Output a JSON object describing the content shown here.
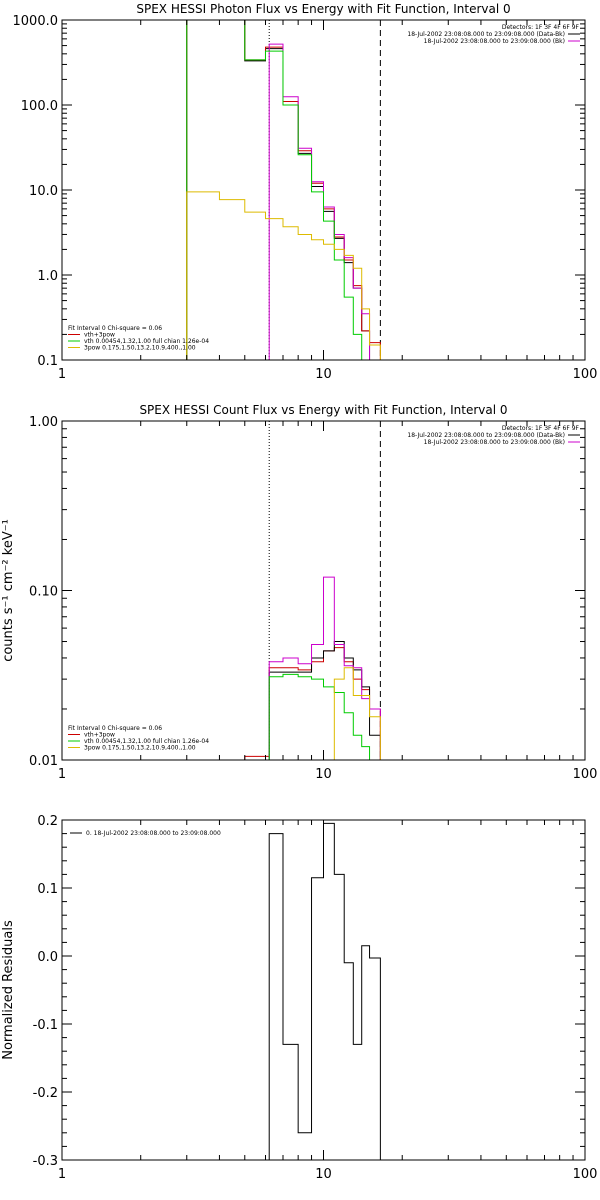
{
  "chart_data": [
    {
      "type": "line",
      "title": "SPEX HESSI Photon Flux vs Energy with Fit Function, Interval 0",
      "xscale": "log",
      "yscale": "log",
      "xlim": [
        1,
        100
      ],
      "ylim": [
        0.1,
        1000
      ],
      "xticks": [
        {
          "v": 1,
          "label": "1"
        },
        {
          "v": 10,
          "label": "10"
        },
        {
          "v": 100,
          "label": "100"
        }
      ],
      "yticks": [
        {
          "v": 0.1,
          "label": "0.1"
        },
        {
          "v": 1,
          "label": "1.0"
        },
        {
          "v": 10,
          "label": "10.0"
        },
        {
          "v": 100,
          "label": "100.0"
        },
        {
          "v": 1000,
          "label": "1000.0"
        }
      ],
      "vlines": [
        {
          "x": 6.2,
          "style": "dotted"
        },
        {
          "x": 16.5,
          "style": "dashed"
        }
      ],
      "legend_topright": [
        "Detectors: 1F 3F 4F 6F 9F",
        "18-Jul-2002 23:08:08.000 to 23:09:08.000 (Data-Bk)",
        "18-Jul-2002 23:08:08.000 to 23:09:08.000 (Bk)"
      ],
      "legend_topright_colors": [
        "",
        "#000000",
        "#cc00cc"
      ],
      "legend_bottomleft": [
        "Fit Interval 0   Chi-square = 0.06",
        "vth+3pow",
        "vth 0.00454,1.32,1.00  full chian 1.26e-04",
        "3pow 0.175,1.50,13.2,10.9,400.,1.00"
      ],
      "legend_bottomleft_colors": [
        "",
        "#cc0000",
        "#00cc00",
        "#ddbb00"
      ],
      "series": [
        {
          "color": "#000000",
          "edges": [
            3.0,
            4.0,
            5.0,
            6.0,
            7.0,
            8.0,
            9.0,
            10.0,
            11.0,
            12.0,
            13.0,
            14.0,
            15.0,
            16.5
          ],
          "values": [
            1000,
            1000,
            330,
            460,
            100,
            27,
            11,
            5.6,
            2.7,
            1.4,
            0.7,
            0.22,
            0.08
          ]
        },
        {
          "color": "#cc0000",
          "edges": [
            3.0,
            4.0,
            5.0,
            6.0,
            7.0,
            8.0,
            9.0,
            10.0,
            11.0,
            12.0,
            13.0,
            14.0,
            15.0,
            16.5
          ],
          "values": [
            1000,
            1000,
            340,
            480,
            110,
            29,
            12,
            6.0,
            2.8,
            1.5,
            0.75,
            0.22,
            0.16
          ]
        },
        {
          "color": "#cc00cc",
          "edges": [
            6.2,
            7.0,
            8.0,
            9.0,
            10.0,
            11.0,
            12.0,
            13.0,
            14.0,
            15.0,
            16.5
          ],
          "values": [
            520,
            125,
            31,
            12.5,
            6.3,
            3.0,
            1.6,
            0.7,
            0.35,
            0.05
          ]
        },
        {
          "color": "#00cc00",
          "edges": [
            3.0,
            4.0,
            5.0,
            6.0,
            7.0,
            8.0,
            9.0,
            10.0,
            11.0,
            12.0,
            13.0,
            14.0,
            15.0
          ],
          "values": [
            1000,
            1000,
            340,
            430,
            100,
            26,
            9.5,
            4.3,
            1.5,
            0.55,
            0.2,
            0.05
          ]
        },
        {
          "color": "#ddbb00",
          "edges": [
            3.0,
            4.0,
            5.0,
            6.0,
            7.0,
            8.0,
            9.0,
            10.0,
            11.0,
            12.0,
            13.0,
            14.0,
            15.0,
            16.5
          ],
          "values": [
            9.5,
            7.7,
            5.5,
            4.6,
            3.7,
            3.0,
            2.6,
            2.3,
            2.0,
            1.7,
            1.2,
            0.4,
            0.15
          ]
        }
      ]
    },
    {
      "type": "line",
      "title": "SPEX HESSI Count Flux vs Energy with Fit Function, Interval 0",
      "ylabel": "counts s⁻¹ cm⁻² keV⁻¹",
      "xscale": "log",
      "yscale": "log",
      "xlim": [
        1,
        100
      ],
      "ylim": [
        0.01,
        1.0
      ],
      "xticks": [
        {
          "v": 1,
          "label": "1"
        },
        {
          "v": 10,
          "label": "10"
        },
        {
          "v": 100,
          "label": "100"
        }
      ],
      "yticks": [
        {
          "v": 0.01,
          "label": "0.01"
        },
        {
          "v": 0.1,
          "label": "0.10"
        },
        {
          "v": 1,
          "label": "1.00"
        }
      ],
      "vlines": [
        {
          "x": 6.2,
          "style": "dotted"
        },
        {
          "x": 16.5,
          "style": "dashed"
        }
      ],
      "legend_topright": [
        "Detectors: 1F 3F 4F 6F 9F",
        "18-Jul-2002 23:08:08.000 to 23:09:08.000 (Data-Bk)",
        "18-Jul-2002 23:08:08.000 to 23:09:08.000 (Bk)"
      ],
      "legend_topright_colors": [
        "",
        "#000000",
        "#cc00cc"
      ],
      "legend_bottomleft": [
        "Fit Interval 0   Chi-square = 0.06",
        "vth+3pow",
        "vth 0.00454,1.32,1.00  full chian 1.26e-04",
        "3pow 0.175,1.50,13.2,10.9,400.,1.00"
      ],
      "legend_bottomleft_colors": [
        "",
        "#cc0000",
        "#00cc00",
        "#ddbb00"
      ],
      "series": [
        {
          "color": "#cc0000",
          "edges": [
            5.0,
            6.2,
            7.0,
            8.0,
            9.0,
            10.0,
            11.0,
            12.0,
            13.0,
            14.0,
            15.0,
            16.5
          ],
          "values": [
            0.0105,
            0.035,
            0.035,
            0.034,
            0.038,
            0.044,
            0.046,
            0.038,
            0.03,
            0.026,
            0.02
          ]
        },
        {
          "color": "#000000",
          "edges": [
            6.2,
            7.0,
            8.0,
            9.0,
            10.0,
            11.0,
            12.0,
            13.0,
            14.0,
            15.0,
            16.5
          ],
          "values": [
            0.033,
            0.033,
            0.033,
            0.04,
            0.044,
            0.05,
            0.04,
            0.034,
            0.027,
            0.014
          ]
        },
        {
          "color": "#cc00cc",
          "edges": [
            6.2,
            7.0,
            8.0,
            9.0,
            10.0,
            11.0,
            12.0,
            13.0,
            14.0,
            15.0,
            16.5
          ],
          "values": [
            0.038,
            0.04,
            0.037,
            0.048,
            0.12,
            0.048,
            0.036,
            0.035,
            0.023,
            0.02
          ]
        },
        {
          "color": "#00cc00",
          "edges": [
            6.2,
            7.0,
            8.0,
            9.0,
            10.0,
            11.0,
            12.0,
            13.0,
            14.0,
            15.0
          ],
          "values": [
            0.031,
            0.032,
            0.031,
            0.03,
            0.027,
            0.025,
            0.019,
            0.014,
            0.012
          ]
        },
        {
          "color": "#ddbb00",
          "edges": [
            11.0,
            12.0,
            13.0,
            14.0,
            15.0,
            16.5
          ],
          "values": [
            0.03,
            0.035,
            0.024,
            0.024,
            0.018
          ]
        }
      ]
    },
    {
      "type": "line",
      "title": "",
      "ylabel": "Normalized Residuals",
      "xscale": "log",
      "yscale": "linear",
      "xlim": [
        1,
        100
      ],
      "ylim": [
        -0.3,
        0.2
      ],
      "xticks": [
        {
          "v": 1,
          "label": "1"
        },
        {
          "v": 10,
          "label": "10"
        },
        {
          "v": 100,
          "label": "100"
        }
      ],
      "yticks": [
        {
          "v": -0.3,
          "label": "-0.3"
        },
        {
          "v": -0.2,
          "label": "-0.2"
        },
        {
          "v": -0.1,
          "label": "-0.1"
        },
        {
          "v": 0.0,
          "label": "0.0"
        },
        {
          "v": 0.1,
          "label": "0.1"
        },
        {
          "v": 0.2,
          "label": "0.2"
        }
      ],
      "legend_topleft": [
        "0. 18-Jul-2002 23:08:08.000 to 23:09:08.000"
      ],
      "series": [
        {
          "color": "#000000",
          "edges": [
            6.2,
            7.0,
            8.0,
            9.0,
            10.0,
            11.0,
            12.0,
            13.0,
            14.0,
            15.0,
            16.5
          ],
          "values": [
            0.18,
            -0.13,
            -0.26,
            0.115,
            0.195,
            0.12,
            -0.01,
            -0.13,
            0.015,
            -0.003
          ],
          "drop_ends": true
        }
      ]
    }
  ]
}
